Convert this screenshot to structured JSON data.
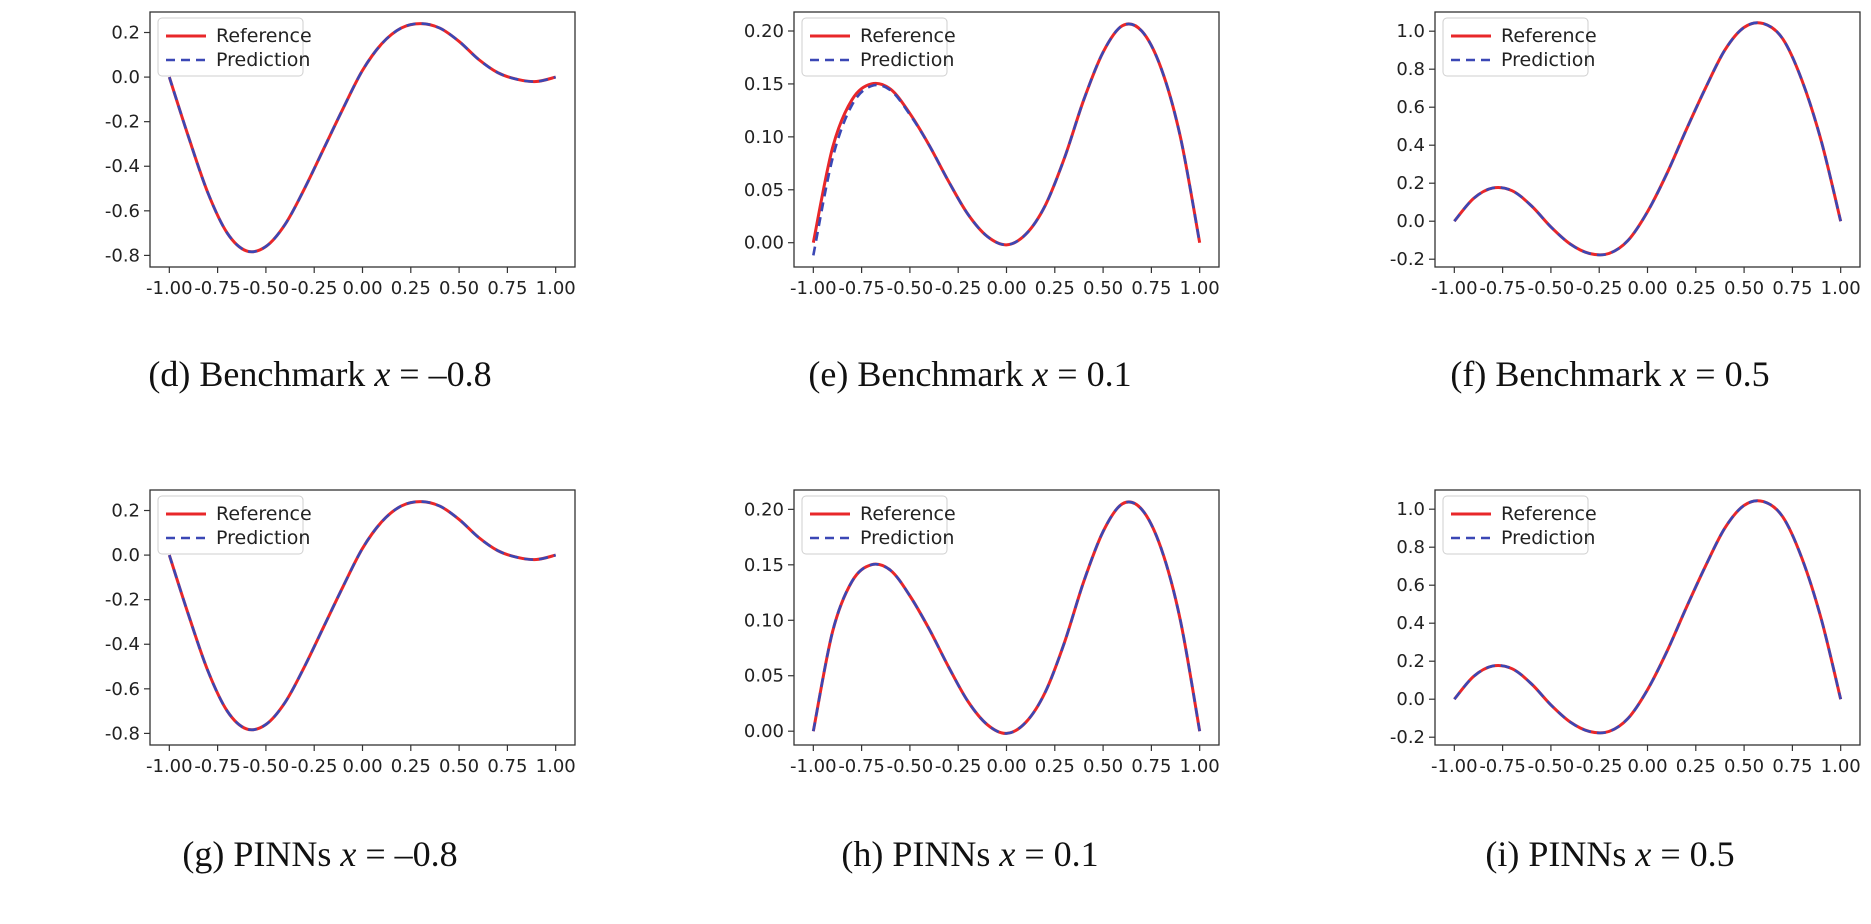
{
  "figure": {
    "legend": {
      "reference": "Reference",
      "prediction": "Prediction"
    },
    "colors": {
      "reference": "#e8272a",
      "prediction": "#3a47b5"
    }
  },
  "chart_data": [
    {
      "id": "d",
      "type": "line",
      "caption": {
        "prefix": "(d) Benchmark",
        "var": "x",
        "eq": " = ",
        "value": "–0.8"
      },
      "xlim": [
        -1.0,
        1.0
      ],
      "ylim": [
        -0.8,
        0.24
      ],
      "xticks": [
        "-1.00",
        "-0.75",
        "-0.50",
        "-0.25",
        "0.00",
        "0.25",
        "0.50",
        "0.75",
        "1.00"
      ],
      "yticks": [
        "0.2",
        "0.0",
        "-0.2",
        "-0.4",
        "-0.6",
        "-0.8"
      ],
      "ytick_values": [
        0.2,
        0.0,
        -0.2,
        -0.4,
        -0.6,
        -0.8
      ],
      "legend_location": "upper-left",
      "series": [
        {
          "name": "Reference",
          "style": "solid",
          "x": [
            -1.0,
            -0.9,
            -0.8,
            -0.7,
            -0.6,
            -0.5,
            -0.4,
            -0.3,
            -0.2,
            -0.1,
            0.0,
            0.1,
            0.2,
            0.3,
            0.4,
            0.5,
            0.6,
            0.7,
            0.8,
            0.9,
            1.0
          ],
          "y": [
            0.0,
            -0.27,
            -0.52,
            -0.7,
            -0.78,
            -0.76,
            -0.66,
            -0.5,
            -0.32,
            -0.14,
            0.03,
            0.15,
            0.22,
            0.24,
            0.22,
            0.16,
            0.08,
            0.02,
            -0.01,
            -0.02,
            0.0
          ]
        },
        {
          "name": "Prediction",
          "style": "dashed",
          "x": [
            -1.0,
            -0.9,
            -0.8,
            -0.7,
            -0.6,
            -0.5,
            -0.4,
            -0.3,
            -0.2,
            -0.1,
            0.0,
            0.1,
            0.2,
            0.3,
            0.4,
            0.5,
            0.6,
            0.7,
            0.8,
            0.9,
            1.0
          ],
          "y": [
            0.0,
            -0.27,
            -0.52,
            -0.7,
            -0.78,
            -0.76,
            -0.66,
            -0.5,
            -0.32,
            -0.14,
            0.03,
            0.15,
            0.22,
            0.24,
            0.22,
            0.16,
            0.08,
            0.02,
            -0.01,
            -0.02,
            0.0
          ]
        }
      ]
    },
    {
      "id": "e",
      "type": "line",
      "caption": {
        "prefix": "(e) Benchmark",
        "var": "x",
        "eq": " = ",
        "value": "0.1"
      },
      "xlim": [
        -1.0,
        1.0
      ],
      "ylim": [
        -0.012,
        0.207
      ],
      "xticks": [
        "-1.00",
        "-0.75",
        "-0.50",
        "-0.25",
        "0.00",
        "0.25",
        "0.50",
        "0.75",
        "1.00"
      ],
      "yticks": [
        "0.20",
        "0.15",
        "0.10",
        "0.05",
        "0.00"
      ],
      "ytick_values": [
        0.2,
        0.15,
        0.1,
        0.05,
        0.0
      ],
      "legend_location": "upper-left",
      "series": [
        {
          "name": "Reference",
          "style": "solid",
          "x": [
            -1.0,
            -0.9,
            -0.8,
            -0.7,
            -0.6,
            -0.5,
            -0.4,
            -0.3,
            -0.2,
            -0.1,
            0.0,
            0.1,
            0.2,
            0.3,
            0.4,
            0.5,
            0.6,
            0.7,
            0.8,
            0.9,
            1.0
          ],
          "y": [
            0.0,
            0.09,
            0.135,
            0.15,
            0.145,
            0.122,
            0.092,
            0.058,
            0.027,
            0.006,
            -0.002,
            0.008,
            0.035,
            0.08,
            0.135,
            0.18,
            0.205,
            0.2,
            0.165,
            0.1,
            0.0
          ]
        },
        {
          "name": "Prediction",
          "style": "dashed",
          "x": [
            -1.0,
            -0.9,
            -0.8,
            -0.7,
            -0.6,
            -0.5,
            -0.4,
            -0.3,
            -0.2,
            -0.1,
            0.0,
            0.1,
            0.2,
            0.3,
            0.4,
            0.5,
            0.6,
            0.7,
            0.8,
            0.9,
            1.0
          ],
          "y": [
            -0.012,
            0.08,
            0.13,
            0.148,
            0.144,
            0.121,
            0.092,
            0.058,
            0.027,
            0.006,
            -0.002,
            0.008,
            0.035,
            0.08,
            0.135,
            0.18,
            0.205,
            0.2,
            0.165,
            0.1,
            0.0
          ]
        }
      ]
    },
    {
      "id": "f",
      "type": "line",
      "caption": {
        "prefix": "(f) Benchmark",
        "var": "x",
        "eq": " = ",
        "value": "0.5"
      },
      "xlim": [
        -1.0,
        1.0
      ],
      "ylim": [
        -0.18,
        1.04
      ],
      "xticks": [
        "-1.00",
        "-0.75",
        "-0.50",
        "-0.25",
        "0.00",
        "0.25",
        "0.50",
        "0.75",
        "1.00"
      ],
      "yticks": [
        "1.0",
        "0.8",
        "0.6",
        "0.4",
        "0.2",
        "0.0",
        "-0.2"
      ],
      "ytick_values": [
        1.0,
        0.8,
        0.6,
        0.4,
        0.2,
        0.0,
        -0.2
      ],
      "legend_location": "upper-left",
      "series": [
        {
          "name": "Reference",
          "style": "solid",
          "x": [
            -1.0,
            -0.9,
            -0.8,
            -0.7,
            -0.6,
            -0.5,
            -0.4,
            -0.3,
            -0.2,
            -0.1,
            0.0,
            0.1,
            0.2,
            0.3,
            0.4,
            0.5,
            0.6,
            0.7,
            0.8,
            0.9,
            1.0
          ],
          "y": [
            0.0,
            0.12,
            0.175,
            0.16,
            0.08,
            -0.03,
            -0.12,
            -0.17,
            -0.17,
            -0.1,
            0.05,
            0.25,
            0.48,
            0.7,
            0.9,
            1.02,
            1.04,
            0.96,
            0.74,
            0.42,
            0.0
          ]
        },
        {
          "name": "Prediction",
          "style": "dashed",
          "x": [
            -1.0,
            -0.9,
            -0.8,
            -0.7,
            -0.6,
            -0.5,
            -0.4,
            -0.3,
            -0.2,
            -0.1,
            0.0,
            0.1,
            0.2,
            0.3,
            0.4,
            0.5,
            0.6,
            0.7,
            0.8,
            0.9,
            1.0
          ],
          "y": [
            0.0,
            0.12,
            0.175,
            0.16,
            0.08,
            -0.03,
            -0.12,
            -0.17,
            -0.17,
            -0.1,
            0.05,
            0.25,
            0.48,
            0.7,
            0.9,
            1.02,
            1.04,
            0.96,
            0.74,
            0.42,
            0.0
          ]
        }
      ]
    },
    {
      "id": "g",
      "type": "line",
      "caption": {
        "prefix": "(g) PINNs",
        "var": "x",
        "eq": " = ",
        "value": "–0.8"
      },
      "xlim": [
        -1.0,
        1.0
      ],
      "ylim": [
        -0.8,
        0.24
      ],
      "xticks": [
        "-1.00",
        "-0.75",
        "-0.50",
        "-0.25",
        "0.00",
        "0.25",
        "0.50",
        "0.75",
        "1.00"
      ],
      "yticks": [
        "0.2",
        "0.0",
        "-0.2",
        "-0.4",
        "-0.6",
        "-0.8"
      ],
      "ytick_values": [
        0.2,
        0.0,
        -0.2,
        -0.4,
        -0.6,
        -0.8
      ],
      "legend_location": "upper-left",
      "series": [
        {
          "name": "Reference",
          "style": "solid",
          "x": [
            -1.0,
            -0.9,
            -0.8,
            -0.7,
            -0.6,
            -0.5,
            -0.4,
            -0.3,
            -0.2,
            -0.1,
            0.0,
            0.1,
            0.2,
            0.3,
            0.4,
            0.5,
            0.6,
            0.7,
            0.8,
            0.9,
            1.0
          ],
          "y": [
            0.0,
            -0.27,
            -0.52,
            -0.7,
            -0.78,
            -0.76,
            -0.66,
            -0.5,
            -0.32,
            -0.14,
            0.03,
            0.15,
            0.22,
            0.24,
            0.22,
            0.16,
            0.08,
            0.02,
            -0.01,
            -0.02,
            0.0
          ]
        },
        {
          "name": "Prediction",
          "style": "dashed",
          "x": [
            -1.0,
            -0.9,
            -0.8,
            -0.7,
            -0.6,
            -0.5,
            -0.4,
            -0.3,
            -0.2,
            -0.1,
            0.0,
            0.1,
            0.2,
            0.3,
            0.4,
            0.5,
            0.6,
            0.7,
            0.8,
            0.9,
            1.0
          ],
          "y": [
            0.0,
            -0.27,
            -0.52,
            -0.7,
            -0.78,
            -0.76,
            -0.66,
            -0.5,
            -0.32,
            -0.14,
            0.03,
            0.15,
            0.22,
            0.24,
            0.22,
            0.16,
            0.08,
            0.02,
            -0.01,
            -0.02,
            0.0
          ]
        }
      ]
    },
    {
      "id": "h",
      "type": "line",
      "caption": {
        "prefix": "(h) PINNs",
        "var": "x",
        "eq": " = ",
        "value": "0.1"
      },
      "xlim": [
        -1.0,
        1.0
      ],
      "ylim": [
        -0.002,
        0.207
      ],
      "xticks": [
        "-1.00",
        "-0.75",
        "-0.50",
        "-0.25",
        "0.00",
        "0.25",
        "0.50",
        "0.75",
        "1.00"
      ],
      "yticks": [
        "0.20",
        "0.15",
        "0.10",
        "0.05",
        "0.00"
      ],
      "ytick_values": [
        0.2,
        0.15,
        0.1,
        0.05,
        0.0
      ],
      "legend_location": "upper-left",
      "series": [
        {
          "name": "Reference",
          "style": "solid",
          "x": [
            -1.0,
            -0.9,
            -0.8,
            -0.7,
            -0.6,
            -0.5,
            -0.4,
            -0.3,
            -0.2,
            -0.1,
            0.0,
            0.1,
            0.2,
            0.3,
            0.4,
            0.5,
            0.6,
            0.7,
            0.8,
            0.9,
            1.0
          ],
          "y": [
            0.0,
            0.09,
            0.135,
            0.15,
            0.145,
            0.122,
            0.092,
            0.058,
            0.027,
            0.006,
            -0.002,
            0.008,
            0.035,
            0.08,
            0.135,
            0.18,
            0.205,
            0.2,
            0.165,
            0.1,
            0.0
          ]
        },
        {
          "name": "Prediction",
          "style": "dashed",
          "x": [
            -1.0,
            -0.9,
            -0.8,
            -0.7,
            -0.6,
            -0.5,
            -0.4,
            -0.3,
            -0.2,
            -0.1,
            0.0,
            0.1,
            0.2,
            0.3,
            0.4,
            0.5,
            0.6,
            0.7,
            0.8,
            0.9,
            1.0
          ],
          "y": [
            0.0,
            0.09,
            0.135,
            0.15,
            0.145,
            0.122,
            0.092,
            0.058,
            0.027,
            0.006,
            -0.002,
            0.008,
            0.035,
            0.08,
            0.135,
            0.18,
            0.205,
            0.2,
            0.165,
            0.1,
            0.0
          ]
        }
      ]
    },
    {
      "id": "i",
      "type": "line",
      "caption": {
        "prefix": "(i) PINNs",
        "var": "x",
        "eq": " = ",
        "value": "0.5"
      },
      "xlim": [
        -1.0,
        1.0
      ],
      "ylim": [
        -0.18,
        1.04
      ],
      "xticks": [
        "-1.00",
        "-0.75",
        "-0.50",
        "-0.25",
        "0.00",
        "0.25",
        "0.50",
        "0.75",
        "1.00"
      ],
      "yticks": [
        "1.0",
        "0.8",
        "0.6",
        "0.4",
        "0.2",
        "0.0",
        "-0.2"
      ],
      "ytick_values": [
        1.0,
        0.8,
        0.6,
        0.4,
        0.2,
        0.0,
        -0.2
      ],
      "legend_location": "upper-left",
      "series": [
        {
          "name": "Reference",
          "style": "solid",
          "x": [
            -1.0,
            -0.9,
            -0.8,
            -0.7,
            -0.6,
            -0.5,
            -0.4,
            -0.3,
            -0.2,
            -0.1,
            0.0,
            0.1,
            0.2,
            0.3,
            0.4,
            0.5,
            0.6,
            0.7,
            0.8,
            0.9,
            1.0
          ],
          "y": [
            0.0,
            0.12,
            0.175,
            0.16,
            0.08,
            -0.03,
            -0.12,
            -0.17,
            -0.17,
            -0.1,
            0.05,
            0.25,
            0.48,
            0.7,
            0.9,
            1.02,
            1.04,
            0.96,
            0.74,
            0.42,
            0.0
          ]
        },
        {
          "name": "Prediction",
          "style": "dashed",
          "x": [
            -1.0,
            -0.9,
            -0.8,
            -0.7,
            -0.6,
            -0.5,
            -0.4,
            -0.3,
            -0.2,
            -0.1,
            0.0,
            0.1,
            0.2,
            0.3,
            0.4,
            0.5,
            0.6,
            0.7,
            0.8,
            0.9,
            1.0
          ],
          "y": [
            0.0,
            0.12,
            0.175,
            0.16,
            0.08,
            -0.03,
            -0.12,
            -0.17,
            -0.17,
            -0.1,
            0.05,
            0.25,
            0.48,
            0.7,
            0.9,
            1.02,
            1.04,
            0.96,
            0.74,
            0.42,
            0.0
          ]
        }
      ]
    }
  ]
}
